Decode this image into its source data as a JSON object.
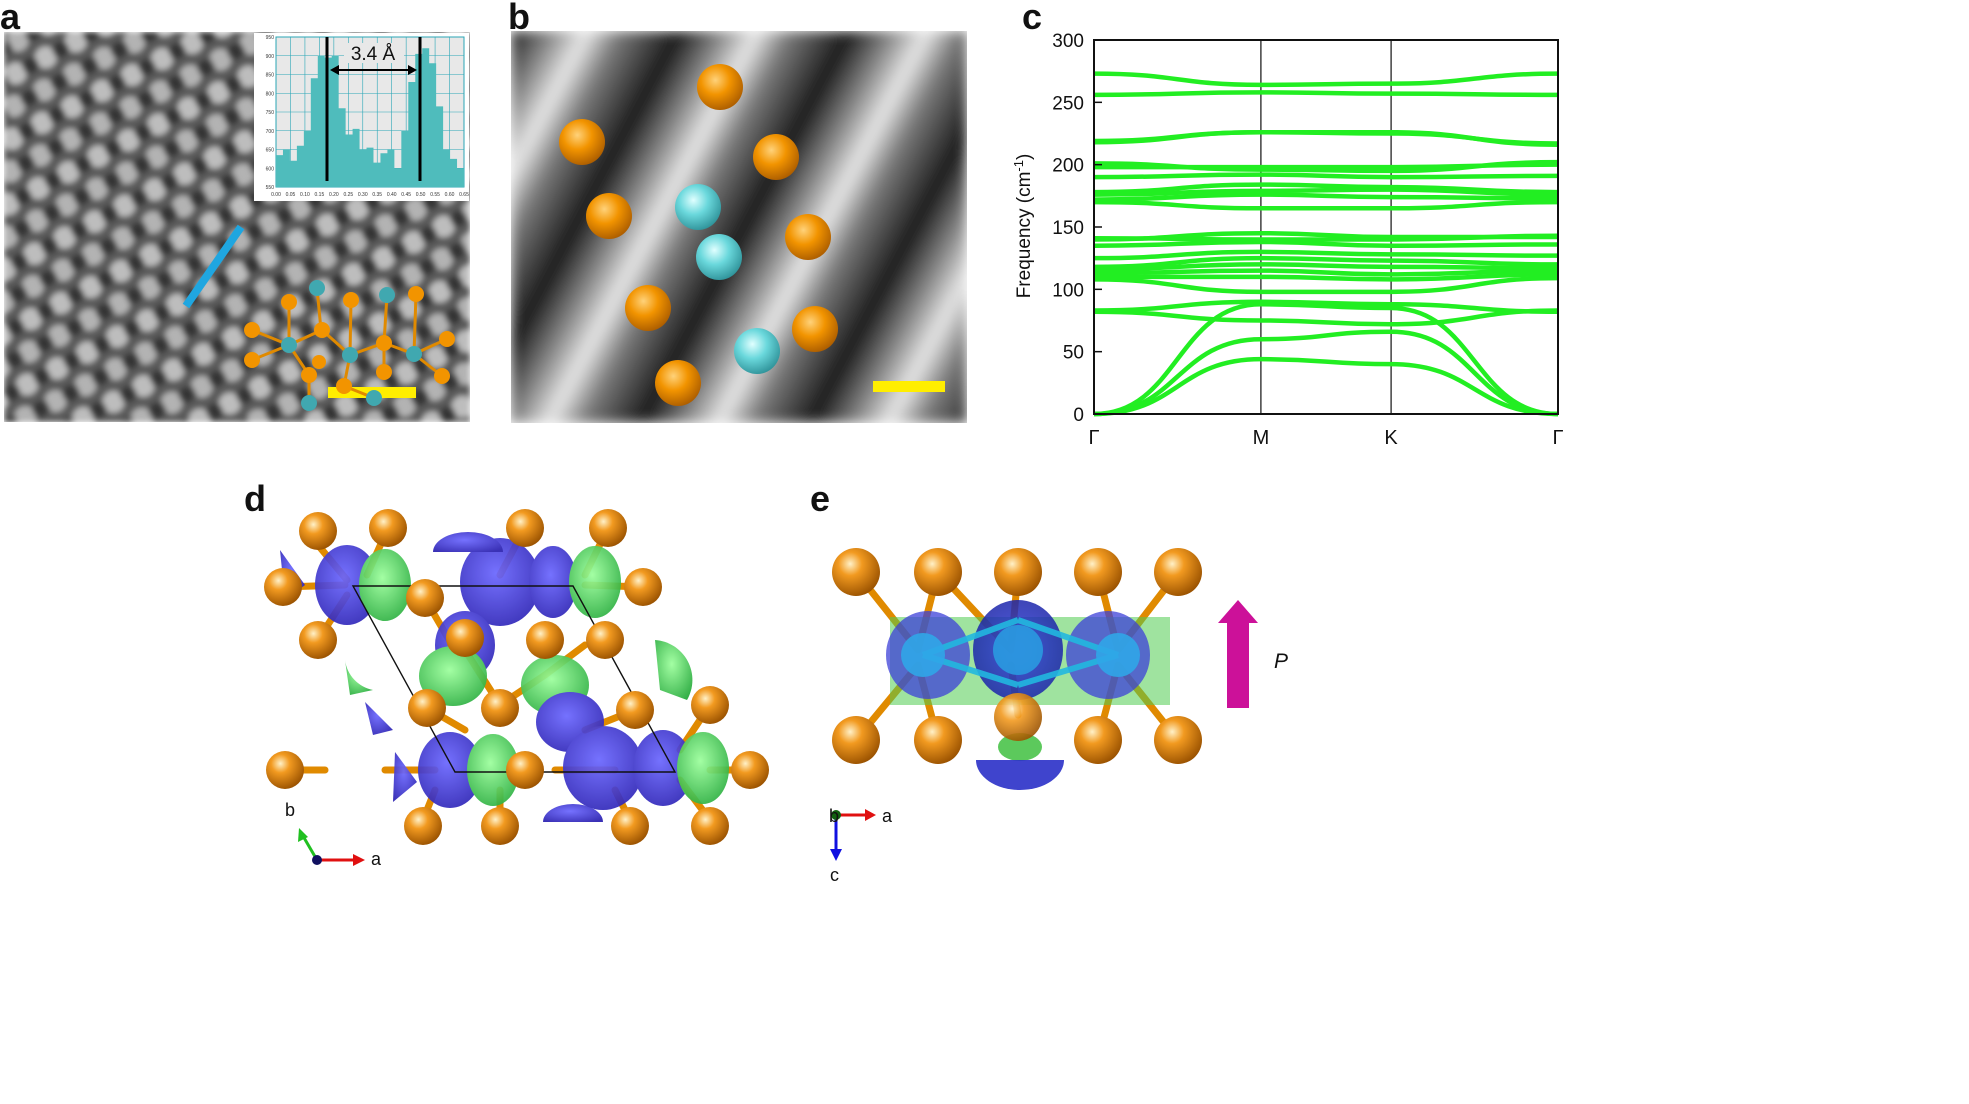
{
  "panels": {
    "a": {
      "label": "a",
      "inset": {
        "annotation": "3.4 Å",
        "x_ticks": [
          "0.00",
          "0.05",
          "0.10",
          "0.15",
          "0.20",
          "0.25",
          "0.30",
          "0.35",
          "0.40",
          "0.45",
          "0.50",
          "0.55",
          "0.60",
          "0.65"
        ],
        "y_ticks": [
          "550",
          "600",
          "650",
          "700",
          "750",
          "800",
          "850",
          "900",
          "950"
        ],
        "profile": [
          635,
          650,
          620,
          660,
          700,
          840,
          900,
          895,
          900,
          760,
          690,
          705,
          650,
          655,
          615,
          640,
          650,
          600,
          700,
          830,
          905,
          920,
          880,
          765,
          650,
          625,
          600
        ]
      }
    },
    "b": {
      "label": "b"
    },
    "c": {
      "label": "c"
    },
    "d": {
      "label": "d",
      "axes": {
        "x": "a",
        "y": "b"
      }
    },
    "e": {
      "label": "e",
      "axes": {
        "x": "a",
        "y": "c",
        "out": "b"
      },
      "polarization": "P"
    }
  },
  "chart_data": {
    "type": "line",
    "ylabel": "Frequency (cm-1)",
    "ylabel_main": "Frequency (cm",
    "ylabel_sup": "-1",
    "ylabel_end": ")",
    "ylim": [
      0,
      300
    ],
    "yticks": [
      "0",
      "50",
      "100",
      "150",
      "200",
      "250",
      "300"
    ],
    "kpoints": [
      "Γ",
      "M",
      "K",
      "Γ"
    ],
    "kpos": [
      0,
      1,
      1.78,
      2.78
    ],
    "color": "#22ee22",
    "series": [
      {
        "values": [
          0,
          60,
          66,
          0
        ]
      },
      {
        "values": [
          0,
          88,
          85,
          0
        ]
      },
      {
        "values": [
          0,
          44,
          40,
          0
        ]
      },
      {
        "values": [
          82,
          75,
          72,
          83
        ]
      },
      {
        "values": [
          83,
          90,
          88,
          82
        ]
      },
      {
        "values": [
          108,
          98,
          98,
          109
        ]
      },
      {
        "values": [
          110,
          110,
          108,
          112
        ]
      },
      {
        "values": [
          113,
          115,
          112,
          115
        ]
      },
      {
        "values": [
          116,
          120,
          118,
          117
        ]
      },
      {
        "values": [
          118,
          125,
          123,
          120
        ]
      },
      {
        "values": [
          125,
          130,
          128,
          127
        ]
      },
      {
        "values": [
          135,
          138,
          135,
          136
        ]
      },
      {
        "values": [
          140,
          145,
          142,
          142
        ]
      },
      {
        "values": [
          141,
          140,
          140,
          143
        ]
      },
      {
        "values": [
          170,
          165,
          165,
          170
        ]
      },
      {
        "values": [
          172,
          176,
          174,
          173
        ]
      },
      {
        "values": [
          176,
          179,
          180,
          176
        ]
      },
      {
        "values": [
          178,
          184,
          182,
          178
        ]
      },
      {
        "values": [
          190,
          192,
          190,
          191
        ]
      },
      {
        "values": [
          198,
          198,
          198,
          200
        ]
      },
      {
        "values": [
          201,
          196,
          195,
          202
        ]
      },
      {
        "values": [
          218,
          226,
          226,
          216
        ]
      },
      {
        "values": [
          219,
          226,
          225,
          217
        ]
      },
      {
        "values": [
          256,
          258,
          257,
          256
        ]
      },
      {
        "values": [
          273,
          264,
          265,
          273
        ]
      }
    ]
  }
}
